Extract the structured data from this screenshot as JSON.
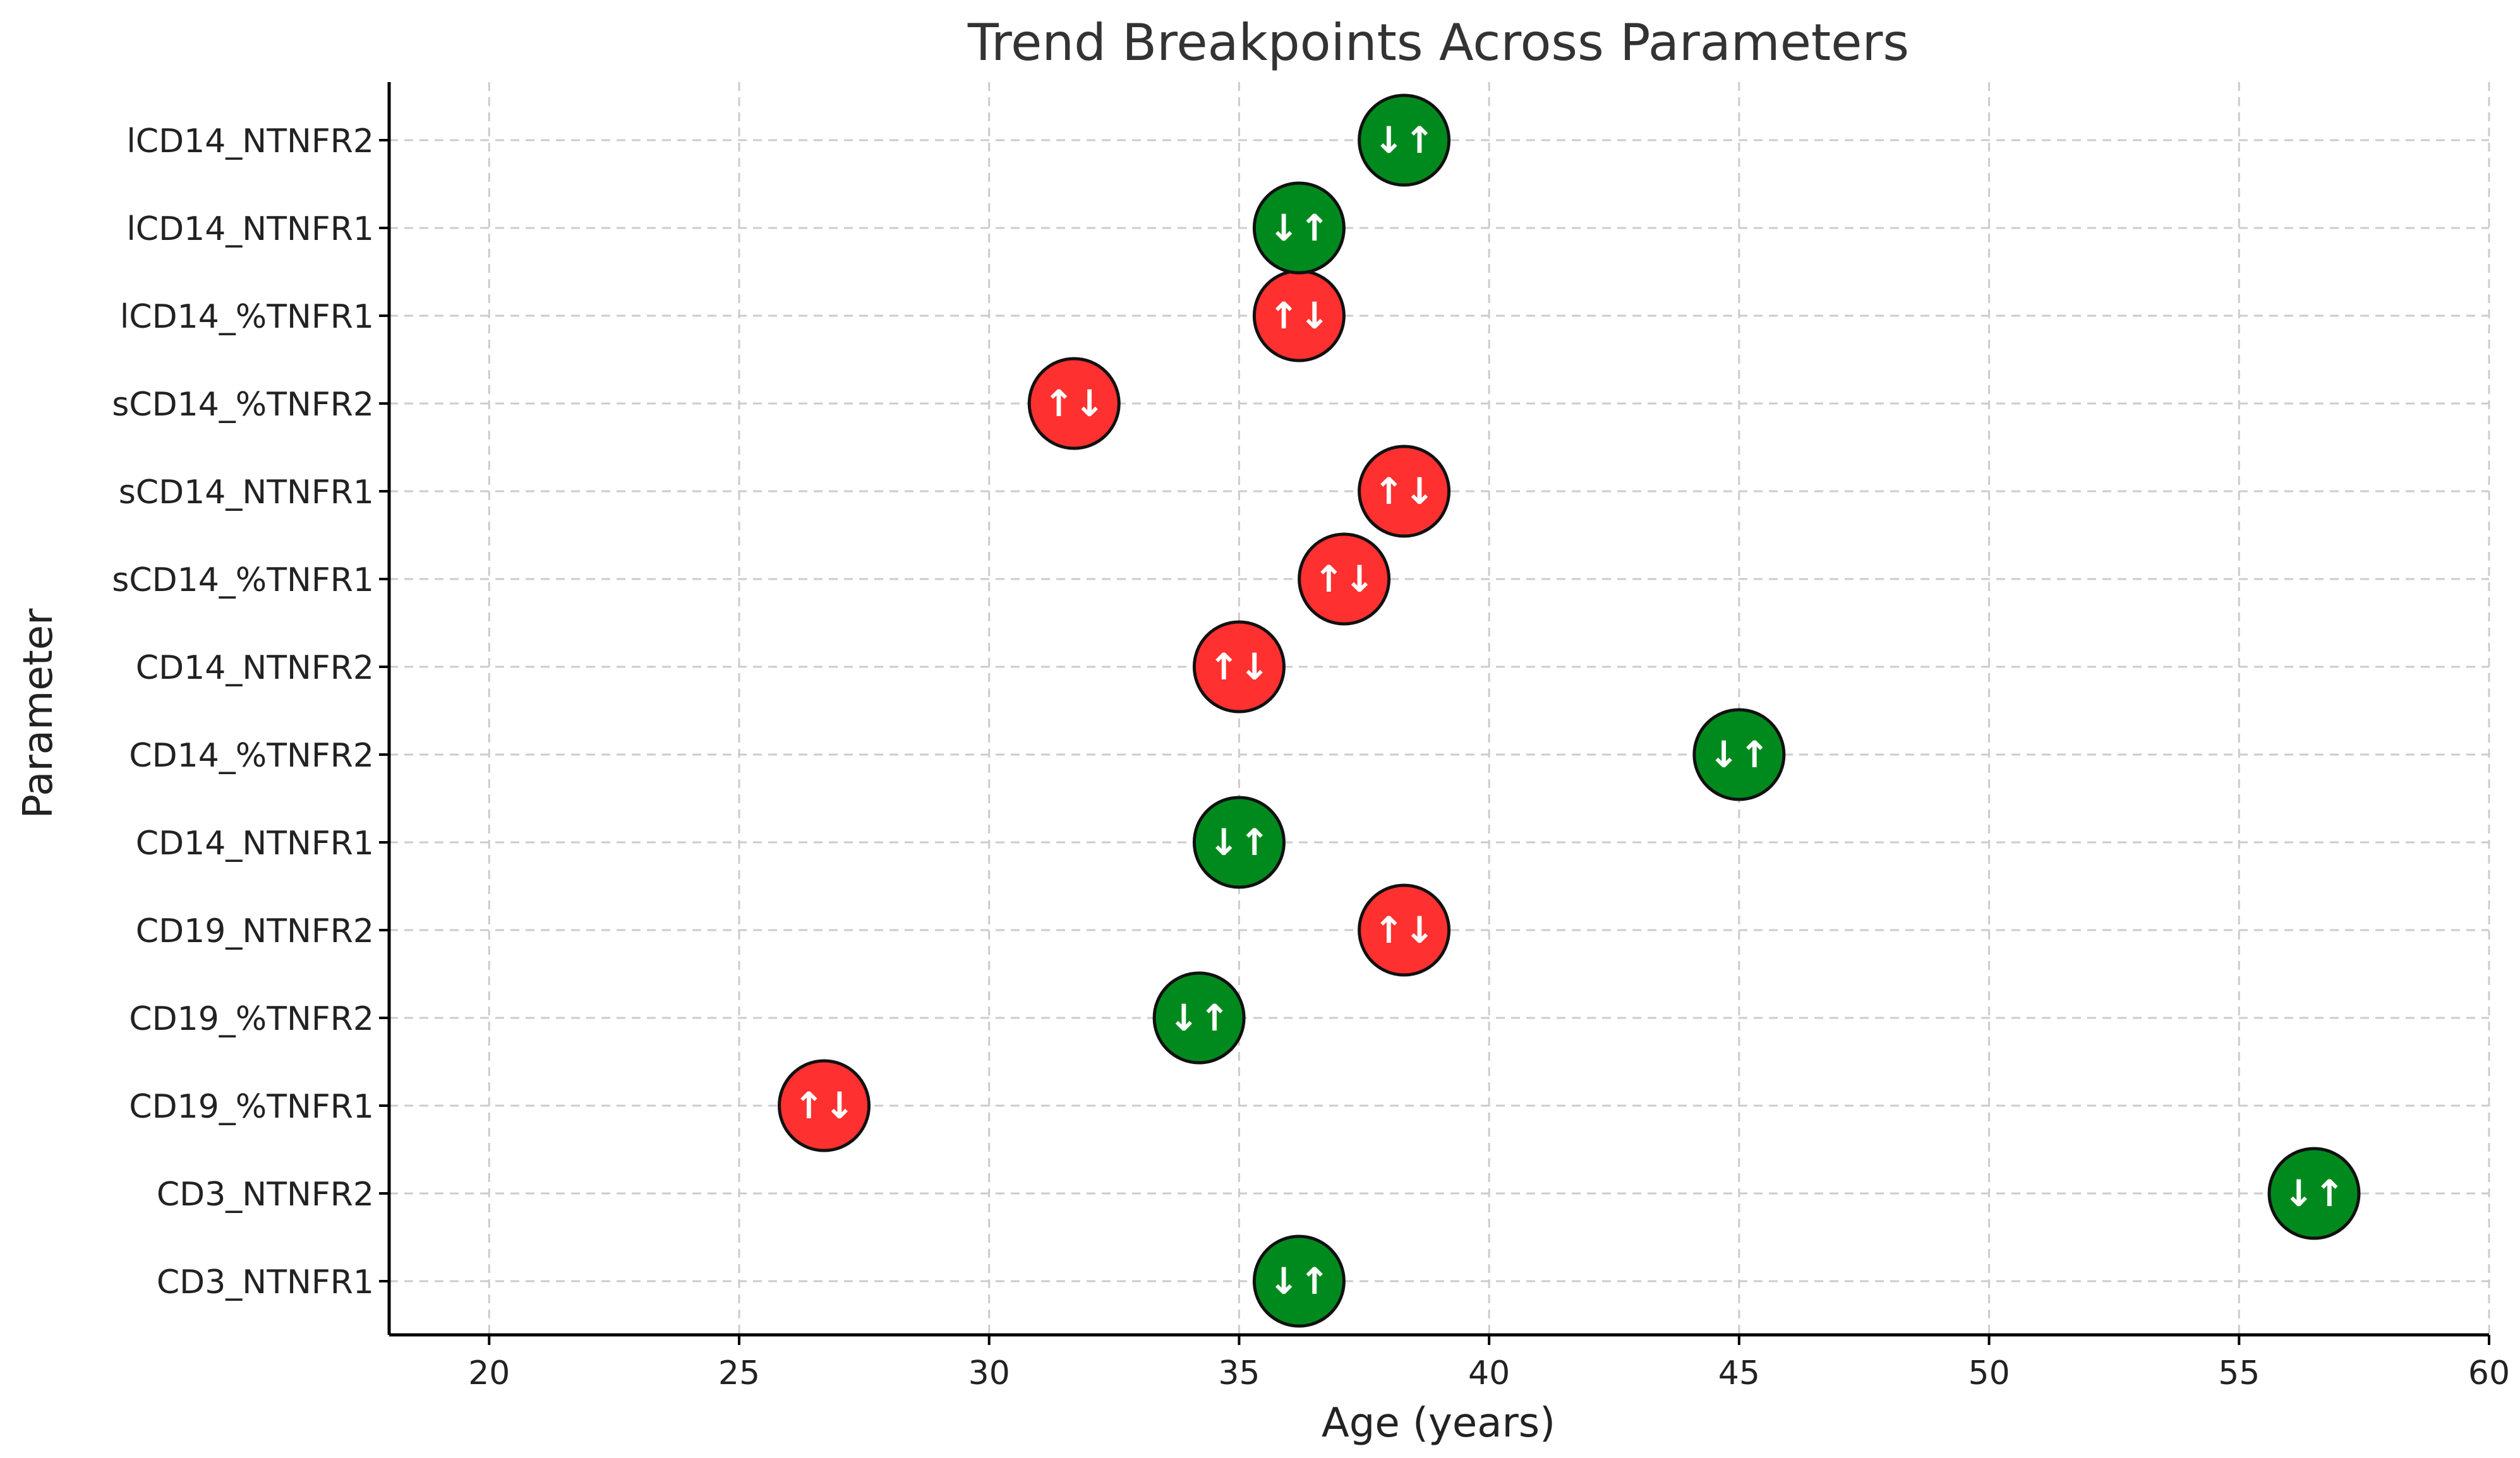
{
  "chart_data": {
    "type": "scatter",
    "title": "Trend Breakpoints Across Parameters",
    "xlabel": "Age (years)",
    "ylabel": "Parameter",
    "xlim": [
      18,
      60
    ],
    "xticks": [
      20,
      25,
      30,
      35,
      40,
      45,
      50,
      55,
      60
    ],
    "grid": true,
    "colors": {
      "down_up": "#008a1e",
      "up_down": "#ff3030"
    },
    "points": [
      {
        "parameter": "CD3_NTNFR1",
        "x": 36.2,
        "symbol": "↓↑",
        "trend": "down_up"
      },
      {
        "parameter": "CD3_NTNFR2",
        "x": 56.5,
        "symbol": "↓↑",
        "trend": "down_up"
      },
      {
        "parameter": "CD19_%TNFR1",
        "x": 26.7,
        "symbol": "↑↓",
        "trend": "up_down"
      },
      {
        "parameter": "CD19_%TNFR2",
        "x": 34.2,
        "symbol": "↓↑",
        "trend": "down_up"
      },
      {
        "parameter": "CD19_NTNFR2",
        "x": 38.3,
        "symbol": "↑↓",
        "trend": "up_down"
      },
      {
        "parameter": "CD14_NTNFR1",
        "x": 35.0,
        "symbol": "↓↑",
        "trend": "down_up"
      },
      {
        "parameter": "CD14_%TNFR2",
        "x": 45.0,
        "symbol": "↓↑",
        "trend": "down_up"
      },
      {
        "parameter": "CD14_NTNFR2",
        "x": 35.0,
        "symbol": "↑↓",
        "trend": "up_down"
      },
      {
        "parameter": "sCD14_%TNFR1",
        "x": 37.1,
        "symbol": "↑↓",
        "trend": "up_down"
      },
      {
        "parameter": "sCD14_NTNFR1",
        "x": 38.3,
        "symbol": "↑↓",
        "trend": "up_down"
      },
      {
        "parameter": "sCD14_%TNFR2",
        "x": 31.7,
        "symbol": "↑↓",
        "trend": "up_down"
      },
      {
        "parameter": "lCD14_%TNFR1",
        "x": 36.2,
        "symbol": "↑↓",
        "trend": "up_down"
      },
      {
        "parameter": "lCD14_NTNFR1",
        "x": 36.2,
        "symbol": "↓↑",
        "trend": "down_up"
      },
      {
        "parameter": "lCD14_NTNFR2",
        "x": 38.3,
        "symbol": "↓↑",
        "trend": "down_up"
      }
    ]
  }
}
